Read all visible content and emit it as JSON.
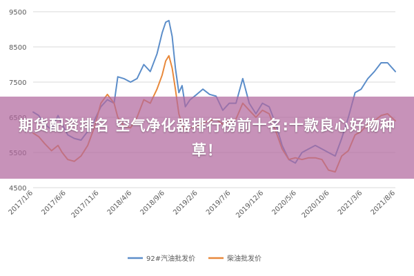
{
  "banner": {
    "text": "期货配资排名 空气净化器排行榜前十名:十款良心好物种草！"
  },
  "chart_data": {
    "type": "line",
    "ylim": [
      4500,
      9500
    ],
    "y_ticks": [
      4500,
      5500,
      6500,
      7500,
      8500,
      9500
    ],
    "x_range": [
      "2017-01-06",
      "2021-08-06"
    ],
    "x_tick_labels": [
      "2017/1/6",
      "2017/6/6",
      "2017/11/6",
      "2018/4/6",
      "2018/9/6",
      "2019/2/6",
      "2019/7/6",
      "2019/12/6",
      "2020/5/6",
      "2020/10/6",
      "2021/3/6",
      "2021/8/6"
    ],
    "grid": "horizontal",
    "legend": "bottom",
    "series": [
      {
        "name": "92#汽油批发价",
        "color": "#5b8dc9",
        "points": [
          [
            "2017-01-06",
            6650
          ],
          [
            "2017-02-01",
            6550
          ],
          [
            "2017-03-01",
            6300
          ],
          [
            "2017-04-01",
            6150
          ],
          [
            "2017-05-01",
            6550
          ],
          [
            "2017-05-20",
            6300
          ],
          [
            "2017-06-15",
            6000
          ],
          [
            "2017-07-15",
            5900
          ],
          [
            "2017-08-15",
            5850
          ],
          [
            "2017-09-15",
            6100
          ],
          [
            "2017-10-15",
            6400
          ],
          [
            "2017-11-15",
            6800
          ],
          [
            "2017-12-15",
            7000
          ],
          [
            "2018-01-15",
            6900
          ],
          [
            "2018-02-01",
            7650
          ],
          [
            "2018-03-01",
            7600
          ],
          [
            "2018-04-01",
            7500
          ],
          [
            "2018-05-01",
            7600
          ],
          [
            "2018-06-01",
            8000
          ],
          [
            "2018-07-01",
            7800
          ],
          [
            "2018-08-01",
            8300
          ],
          [
            "2018-08-25",
            8900
          ],
          [
            "2018-09-10",
            9200
          ],
          [
            "2018-09-25",
            9250
          ],
          [
            "2018-10-10",
            8800
          ],
          [
            "2018-10-25",
            7900
          ],
          [
            "2018-11-10",
            7200
          ],
          [
            "2018-11-25",
            7400
          ],
          [
            "2018-12-10",
            6800
          ],
          [
            "2019-01-01",
            7000
          ],
          [
            "2019-02-01",
            7150
          ],
          [
            "2019-03-01",
            7300
          ],
          [
            "2019-04-01",
            7150
          ],
          [
            "2019-05-01",
            7100
          ],
          [
            "2019-06-01",
            6700
          ],
          [
            "2019-07-01",
            6900
          ],
          [
            "2019-08-01",
            6900
          ],
          [
            "2019-09-01",
            7600
          ],
          [
            "2019-10-01",
            6900
          ],
          [
            "2019-11-01",
            6600
          ],
          [
            "2019-12-01",
            6900
          ],
          [
            "2020-01-01",
            6800
          ],
          [
            "2020-02-01",
            6300
          ],
          [
            "2020-03-01",
            5700
          ],
          [
            "2020-04-01",
            5300
          ],
          [
            "2020-05-01",
            5200
          ],
          [
            "2020-06-01",
            5500
          ],
          [
            "2020-07-01",
            5600
          ],
          [
            "2020-08-01",
            5700
          ],
          [
            "2020-09-01",
            5600
          ],
          [
            "2020-10-01",
            5500
          ],
          [
            "2020-11-01",
            5400
          ],
          [
            "2020-12-01",
            5900
          ],
          [
            "2021-01-01",
            6500
          ],
          [
            "2021-02-01",
            7200
          ],
          [
            "2021-03-01",
            7300
          ],
          [
            "2021-04-01",
            7600
          ],
          [
            "2021-05-01",
            7800
          ],
          [
            "2021-06-01",
            8050
          ],
          [
            "2021-07-01",
            8050
          ],
          [
            "2021-08-06",
            7800
          ]
        ]
      },
      {
        "name": "柴油批发价",
        "color": "#e8883a",
        "points": [
          [
            "2017-01-06",
            6050
          ],
          [
            "2017-02-01",
            5950
          ],
          [
            "2017-03-01",
            5750
          ],
          [
            "2017-04-01",
            5550
          ],
          [
            "2017-05-01",
            5700
          ],
          [
            "2017-05-20",
            5500
          ],
          [
            "2017-06-15",
            5300
          ],
          [
            "2017-07-15",
            5250
          ],
          [
            "2017-08-15",
            5400
          ],
          [
            "2017-09-15",
            5700
          ],
          [
            "2017-10-15",
            6200
          ],
          [
            "2017-11-15",
            6900
          ],
          [
            "2017-12-15",
            7150
          ],
          [
            "2018-01-15",
            6900
          ],
          [
            "2018-02-01",
            6500
          ],
          [
            "2018-03-01",
            6250
          ],
          [
            "2018-04-01",
            6200
          ],
          [
            "2018-05-01",
            6500
          ],
          [
            "2018-06-01",
            7000
          ],
          [
            "2018-07-01",
            6900
          ],
          [
            "2018-08-01",
            7300
          ],
          [
            "2018-08-25",
            7700
          ],
          [
            "2018-09-10",
            8100
          ],
          [
            "2018-09-25",
            8250
          ],
          [
            "2018-10-10",
            7900
          ],
          [
            "2018-10-25",
            7300
          ],
          [
            "2018-11-10",
            6600
          ],
          [
            "2018-11-25",
            6300
          ],
          [
            "2018-12-10",
            6100
          ],
          [
            "2019-01-01",
            6200
          ],
          [
            "2019-02-01",
            6250
          ],
          [
            "2019-03-01",
            6350
          ],
          [
            "2019-04-01",
            6400
          ],
          [
            "2019-05-01",
            6450
          ],
          [
            "2019-06-01",
            6300
          ],
          [
            "2019-07-01",
            6400
          ],
          [
            "2019-08-01",
            6450
          ],
          [
            "2019-09-01",
            6900
          ],
          [
            "2019-10-01",
            6700
          ],
          [
            "2019-11-01",
            6500
          ],
          [
            "2019-12-01",
            6700
          ],
          [
            "2020-01-01",
            6600
          ],
          [
            "2020-02-01",
            6100
          ],
          [
            "2020-03-01",
            5600
          ],
          [
            "2020-04-01",
            5300
          ],
          [
            "2020-05-01",
            5350
          ],
          [
            "2020-06-01",
            5300
          ],
          [
            "2020-07-01",
            5350
          ],
          [
            "2020-08-01",
            5350
          ],
          [
            "2020-09-01",
            5300
          ],
          [
            "2020-10-01",
            5000
          ],
          [
            "2020-11-01",
            4950
          ],
          [
            "2020-12-01",
            5400
          ],
          [
            "2021-01-01",
            5550
          ],
          [
            "2021-02-01",
            6000
          ],
          [
            "2021-03-01",
            6100
          ],
          [
            "2021-04-01",
            6300
          ],
          [
            "2021-05-01",
            6400
          ],
          [
            "2021-06-01",
            6550
          ],
          [
            "2021-07-01",
            6600
          ],
          [
            "2021-08-06",
            6400
          ]
        ]
      }
    ]
  }
}
